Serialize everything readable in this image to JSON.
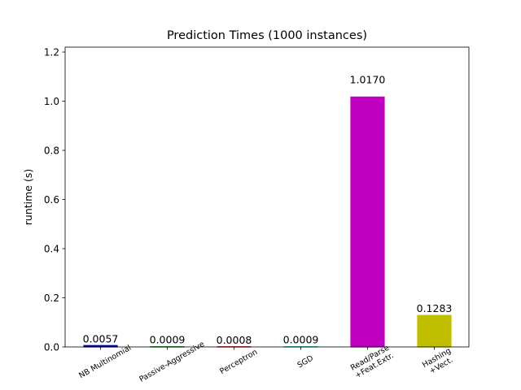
{
  "chart_data": {
    "type": "bar",
    "title": "Prediction Times (1000 instances)",
    "xlabel": "",
    "ylabel": "runtime (s)",
    "ylim": [
      0,
      1.22
    ],
    "yticks": [
      "0.0",
      "0.2",
      "0.4",
      "0.6",
      "0.8",
      "1.0",
      "1.2"
    ],
    "categories": [
      [
        "NB Multinomial"
      ],
      [
        "Passive-Aggressive"
      ],
      [
        "Perceptron"
      ],
      [
        "SGD"
      ],
      [
        "Read/Parse",
        "+Feat.Extr."
      ],
      [
        "Hashing",
        "+Vect."
      ]
    ],
    "values": [
      0.0057,
      0.0009,
      0.0008,
      0.0009,
      1.017,
      0.1283
    ],
    "value_labels": [
      "0.0057",
      "0.0009",
      "0.0008",
      "0.0009",
      "1.0170",
      "0.1283"
    ],
    "colors": [
      "#0000bf",
      "#008000",
      "#bf0000",
      "#00bfbf",
      "#bf00bf",
      "#bfbf00"
    ],
    "grid": false,
    "legend": "none"
  }
}
